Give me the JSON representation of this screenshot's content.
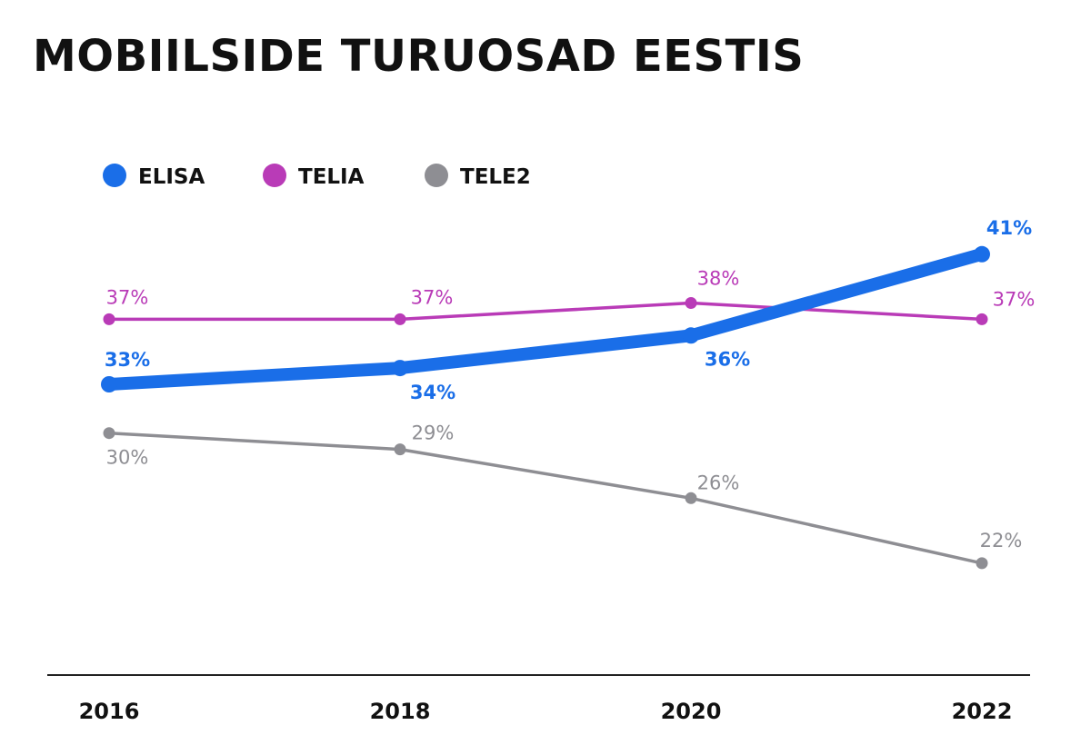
{
  "chart_data": {
    "type": "line",
    "title": "MOBIILSIDE TURUOSAD EESTIS",
    "categories": [
      "2016",
      "2018",
      "2020",
      "2022"
    ],
    "series": [
      {
        "name": "ELISA",
        "values": [
          33,
          34,
          36,
          41
        ],
        "labels": [
          "33%",
          "34%",
          "36%",
          "41%"
        ],
        "color": "#1a6ee8"
      },
      {
        "name": "TELIA",
        "values": [
          37,
          37,
          38,
          37
        ],
        "labels": [
          "37%",
          "37%",
          "38%",
          "37%"
        ],
        "color": "#b93bb7"
      },
      {
        "name": "TELE2",
        "values": [
          30,
          29,
          26,
          22
        ],
        "labels": [
          "30%",
          "29%",
          "26%",
          "22%"
        ],
        "color": "#8e8e93"
      }
    ],
    "legend_position": "top-left",
    "grid": false,
    "axis_color": "#222222"
  }
}
